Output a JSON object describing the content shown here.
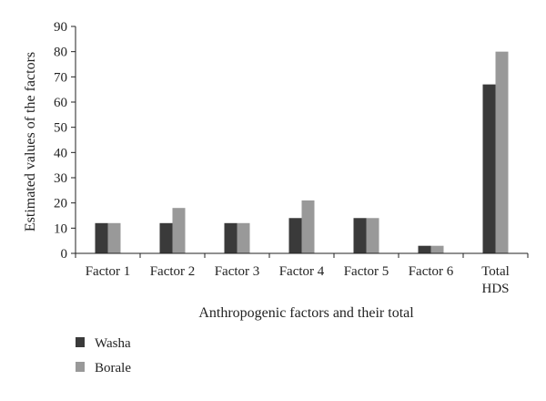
{
  "chart_data": {
    "type": "bar",
    "categories": [
      [
        "Factor 1"
      ],
      [
        "Factor 2"
      ],
      [
        "Factor 3"
      ],
      [
        "Factor 4"
      ],
      [
        "Factor 5"
      ],
      [
        "Factor 6"
      ],
      [
        "Total",
        "HDS"
      ]
    ],
    "series": [
      {
        "name": "Washa",
        "values": [
          12,
          12,
          12,
          14,
          14,
          3,
          67
        ],
        "color": "#3a3a3a"
      },
      {
        "name": "Borale",
        "values": [
          12,
          18,
          12,
          21,
          14,
          3,
          80
        ],
        "color": "#999999"
      }
    ],
    "title": "",
    "xlabel": "Anthropogenic factors and their total",
    "ylabel": "Estimated values of the factors",
    "ylim": [
      0,
      90
    ],
    "yticks": [
      0,
      10,
      20,
      30,
      40,
      50,
      60,
      70,
      80,
      90
    ],
    "grid": false,
    "legend": "bottom-left"
  }
}
